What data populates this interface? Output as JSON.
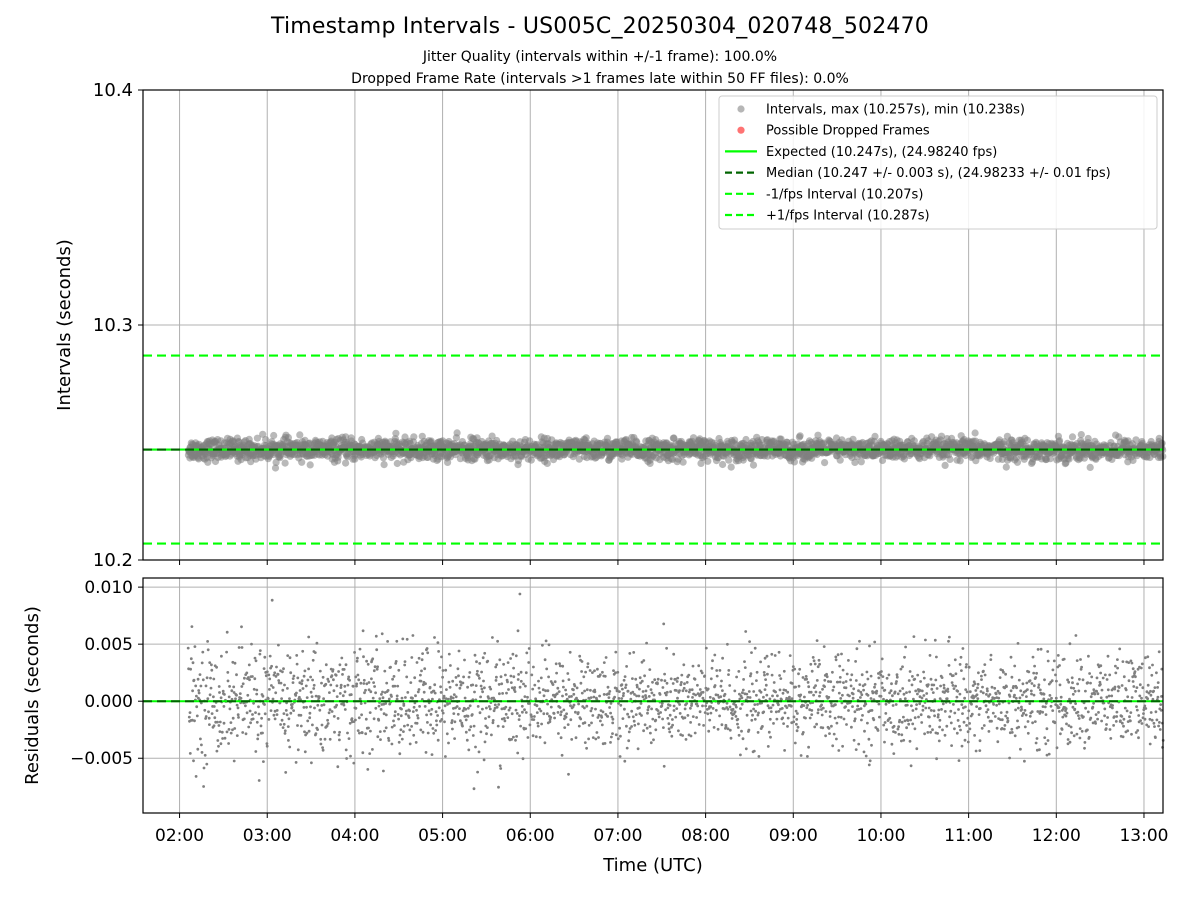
{
  "figure": {
    "title": "Timestamp Intervals - US005C_20250304_020748_502470",
    "subtitle_jitter": "Jitter Quality (intervals within +/-1 frame): 100.0%",
    "subtitle_dropped": "Dropped Frame Rate (intervals >1 frames late within 50 FF files): 0.0%"
  },
  "colors": {
    "points": "#808080",
    "dropped": "#ff5a5a",
    "expected": "#00ff00",
    "median": "#006400",
    "bounds": "#00ff00",
    "grid": "#b0b0b0"
  },
  "chart_data": [
    {
      "type": "scatter",
      "ylabel": "Intervals (seconds)",
      "ylim": [
        10.2,
        10.4
      ],
      "yticks": [
        "10.2",
        "10.3",
        "10.4"
      ],
      "xlim": [
        1.583,
        13.217
      ],
      "grid": true,
      "legend_position": "upper right",
      "legend": [
        {
          "label": "Intervals, max (10.257s), min (10.238s)",
          "kind": "marker",
          "color": "#a9a9a9"
        },
        {
          "label": "Possible Dropped Frames",
          "kind": "marker",
          "color": "#ff5a5a"
        },
        {
          "label": "Expected (10.247s), (24.98240 fps)",
          "kind": "solid",
          "color": "#00ff00"
        },
        {
          "label": "Median (10.247 +/- 0.003 s), (24.98233 +/- 0.01 fps)",
          "kind": "dashed",
          "color": "#006400"
        },
        {
          "label": "-1/fps Interval (10.207s)",
          "kind": "dashed",
          "color": "#00ff00"
        },
        {
          "label": "+1/fps Interval (10.287s)",
          "kind": "dashed",
          "color": "#00ff00"
        }
      ],
      "reference_lines": {
        "expected": 10.247,
        "median": 10.247,
        "lower_bound": 10.207,
        "upper_bound": 10.287
      },
      "series": [
        {
          "name": "Intervals",
          "x_start": 2.1,
          "x_end": 13.217,
          "center": 10.247,
          "spread": 0.003,
          "max": 10.257,
          "min": 10.238
        }
      ]
    },
    {
      "type": "scatter",
      "xlabel": "Time (UTC)",
      "ylabel": "Residuals (seconds)",
      "ylim": [
        -0.0098,
        0.0108
      ],
      "yticks": [
        "0.010",
        "0.005",
        "0.000",
        "−0.005"
      ],
      "xticks": [
        "02:00",
        "03:00",
        "04:00",
        "05:00",
        "06:00",
        "07:00",
        "08:00",
        "09:00",
        "10:00",
        "11:00",
        "12:00",
        "13:00"
      ],
      "xlim": [
        1.583,
        13.217
      ],
      "grid": true,
      "reference_lines": {
        "zero": 0.0
      },
      "series": [
        {
          "name": "Residuals",
          "x_start": 2.1,
          "x_end": 13.217,
          "center": 0.0,
          "spread": 0.003,
          "max": 0.0099,
          "min": -0.0087
        }
      ]
    }
  ]
}
